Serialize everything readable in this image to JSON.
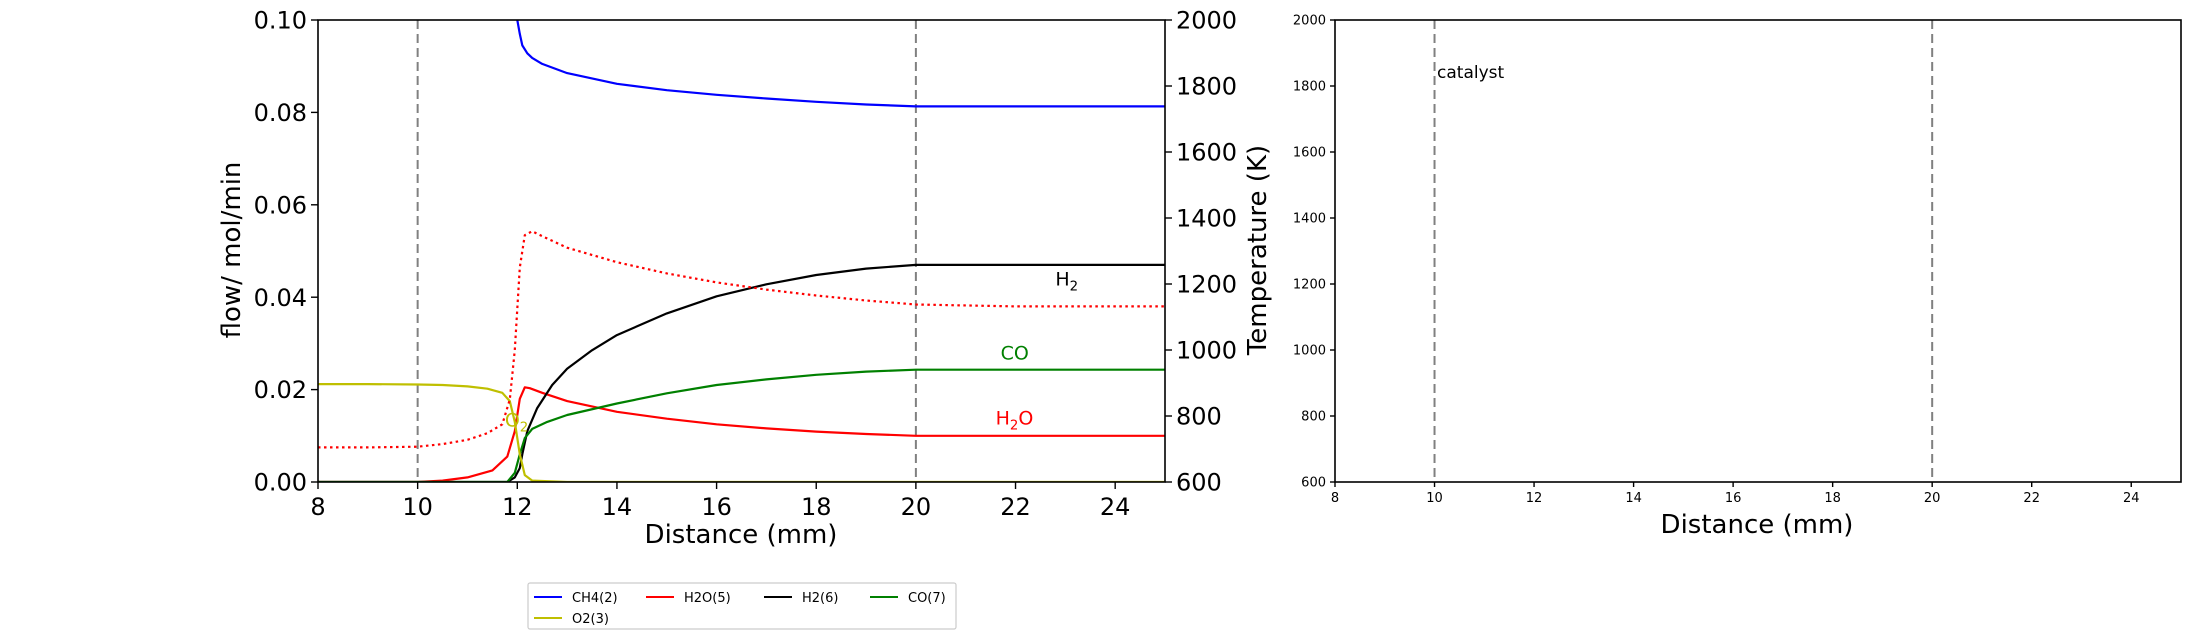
{
  "chart_data": [
    {
      "type": "line",
      "xlabel": "Distance (mm)",
      "ylabel": "flow/ mol/min",
      "ylabel_right": "Temperature (K)",
      "xlim": [
        8,
        25
      ],
      "ylim": [
        0,
        0.1
      ],
      "ylim_right": [
        600,
        2000
      ],
      "xticks": [
        "8",
        "10",
        "12",
        "14",
        "16",
        "18",
        "20",
        "22",
        "24"
      ],
      "yticks": [
        "0.00",
        "0.02",
        "0.04",
        "0.06",
        "0.08",
        "0.10"
      ],
      "yticks_right": [
        "600",
        "800",
        "1000",
        "1200",
        "1400",
        "1600",
        "1800",
        "2000"
      ],
      "vlines": [
        10,
        20
      ],
      "grid": false,
      "series": [
        {
          "name": "CH4(2)",
          "color": "#0000ff",
          "style": "solid",
          "axis": "left",
          "x": [
            12.0,
            12.05,
            12.1,
            12.2,
            12.3,
            12.5,
            13,
            14,
            15,
            16,
            17,
            18,
            19,
            20,
            22,
            25
          ],
          "y": [
            0.1,
            0.097,
            0.0945,
            0.0928,
            0.0918,
            0.0905,
            0.0885,
            0.0862,
            0.0848,
            0.0838,
            0.083,
            0.0823,
            0.0817,
            0.0813,
            0.0813,
            0.0813
          ]
        },
        {
          "name": "H2O(5)",
          "color": "#ff0000",
          "style": "solid",
          "axis": "left",
          "x": [
            8,
            10,
            10.5,
            11,
            11.5,
            11.8,
            11.95,
            12.05,
            12.15,
            12.25,
            12.5,
            13,
            14,
            15,
            16,
            17,
            18,
            19,
            20,
            22,
            25
          ],
          "y": [
            0.0,
            0.0,
            0.0003,
            0.001,
            0.0025,
            0.0055,
            0.011,
            0.018,
            0.0205,
            0.0203,
            0.0193,
            0.0175,
            0.0152,
            0.0137,
            0.0125,
            0.0116,
            0.0109,
            0.0104,
            0.01,
            0.01,
            0.01
          ]
        },
        {
          "name": "H2(6)",
          "color": "#000000",
          "style": "solid",
          "axis": "left",
          "x": [
            8,
            11.8,
            11.95,
            12.05,
            12.1,
            12.2,
            12.4,
            12.7,
            13,
            13.5,
            14,
            15,
            16,
            17,
            18,
            19,
            20,
            22,
            25
          ],
          "y": [
            0.0,
            0.0,
            0.001,
            0.003,
            0.006,
            0.011,
            0.016,
            0.021,
            0.0245,
            0.0285,
            0.0318,
            0.0365,
            0.0402,
            0.0428,
            0.0448,
            0.0462,
            0.047,
            0.047,
            0.047
          ]
        },
        {
          "name": "CO(7)",
          "color": "#008000",
          "style": "solid",
          "axis": "left",
          "x": [
            8,
            11.8,
            11.95,
            12.05,
            12.15,
            12.3,
            12.6,
            13,
            14,
            15,
            16,
            17,
            18,
            19,
            20,
            22,
            25
          ],
          "y": [
            0.0,
            0.0,
            0.002,
            0.006,
            0.0095,
            0.0115,
            0.013,
            0.0145,
            0.017,
            0.0192,
            0.021,
            0.0222,
            0.0232,
            0.0239,
            0.0243,
            0.0243,
            0.0243
          ]
        },
        {
          "name": "O2(3)",
          "color": "#bfbf00",
          "style": "solid",
          "axis": "left",
          "x": [
            8,
            9,
            10,
            10.5,
            11,
            11.4,
            11.7,
            11.85,
            11.95,
            12.05,
            12.15,
            12.3,
            13,
            25
          ],
          "y": [
            0.0212,
            0.0212,
            0.0211,
            0.021,
            0.0207,
            0.0202,
            0.0193,
            0.0175,
            0.013,
            0.006,
            0.0015,
            0.0003,
            0.0,
            0.0
          ]
        },
        {
          "color": "#ff0000",
          "style": "dotted",
          "axis": "right",
          "x": [
            8,
            9,
            10,
            10.5,
            11,
            11.4,
            11.7,
            11.85,
            11.95,
            12.05,
            12.15,
            12.3,
            12.5,
            13,
            14,
            15,
            16,
            17,
            18,
            19,
            20,
            22,
            25
          ],
          "y": [
            705,
            705,
            707,
            715,
            728,
            748,
            775,
            850,
            1000,
            1250,
            1348,
            1360,
            1345,
            1310,
            1266,
            1232,
            1205,
            1183,
            1165,
            1150,
            1138,
            1132,
            1132
          ]
        }
      ],
      "annotations": [
        {
          "text": "H",
          "sub": "2",
          "after": "",
          "color": "#000000",
          "x": 22.8,
          "y": 0.0425
        },
        {
          "text": "CO",
          "sub": "",
          "after": "",
          "color": "#008000",
          "x": 21.7,
          "y": 0.0265
        },
        {
          "text": "H",
          "sub": "2",
          "after": "O",
          "color": "#ff0000",
          "x": 21.6,
          "y": 0.0125
        },
        {
          "text": "O",
          "sub": "2",
          "after": "",
          "color": "#bfbf00",
          "x": 11.75,
          "y": 0.012
        }
      ],
      "legend": {
        "placement": "below",
        "entries": [
          {
            "label": "CH4(2)",
            "color": "#0000ff"
          },
          {
            "label": "H2O(5)",
            "color": "#ff0000"
          },
          {
            "label": "H2(6)",
            "color": "#000000"
          },
          {
            "label": "CO(7)",
            "color": "#008000"
          },
          {
            "label": "O2(3)",
            "color": "#bfbf00"
          }
        ]
      }
    },
    {
      "type": "line",
      "xlabel": "Distance (mm)",
      "ylabel": "",
      "xlim": [
        8,
        25
      ],
      "ylim": [
        600,
        2000
      ],
      "xticks": [
        "8",
        "10",
        "12",
        "14",
        "16",
        "18",
        "20",
        "22",
        "24"
      ],
      "yticks": [
        "600",
        "800",
        "1000",
        "1200",
        "1400",
        "1600",
        "1800",
        "2000"
      ],
      "vlines": [
        10,
        20
      ],
      "grid": false,
      "series": [],
      "annotations": [
        {
          "text": "catalyst",
          "sub": "",
          "after": "",
          "color": "#000000",
          "x": 10.05,
          "y": 1825
        }
      ]
    }
  ]
}
